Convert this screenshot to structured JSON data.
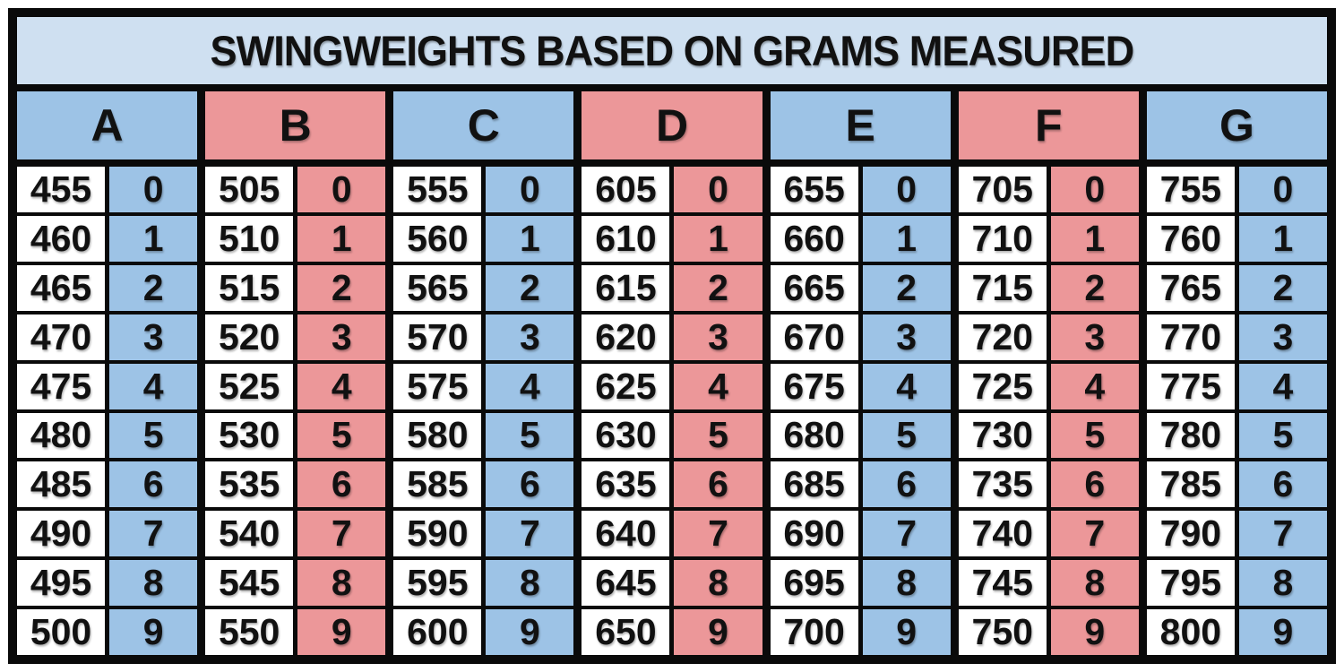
{
  "title": "SWINGWEIGHTS BASED ON GRAMS MEASURED",
  "colors": {
    "title_bg": "#cfe0f1",
    "blue": "#9dc3e6",
    "pink": "#ec9799",
    "border": "#0a0a0a",
    "cell_bg": "#ffffff",
    "text": "#111111"
  },
  "chart_data": {
    "type": "table",
    "title": "SWINGWEIGHTS BASED ON GRAMS MEASURED",
    "layout": {
      "rows_per_group": 10,
      "sub_columns": [
        "grams",
        "swingweight_digit"
      ],
      "grid": "7 column groups, each with a white grams cell and a colored digit cell",
      "theme_order": [
        "blue",
        "pink",
        "blue",
        "pink",
        "blue",
        "pink",
        "blue"
      ]
    },
    "columns": [
      {
        "label": "A",
        "theme": "blue",
        "grams": [
          455,
          460,
          465,
          470,
          475,
          480,
          485,
          490,
          495,
          500
        ],
        "swingweights": [
          0,
          1,
          2,
          3,
          4,
          5,
          6,
          7,
          8,
          9
        ]
      },
      {
        "label": "B",
        "theme": "pink",
        "grams": [
          505,
          510,
          515,
          520,
          525,
          530,
          535,
          540,
          545,
          550
        ],
        "swingweights": [
          0,
          1,
          2,
          3,
          4,
          5,
          6,
          7,
          8,
          9
        ]
      },
      {
        "label": "C",
        "theme": "blue",
        "grams": [
          555,
          560,
          565,
          570,
          575,
          580,
          585,
          590,
          595,
          600
        ],
        "swingweights": [
          0,
          1,
          2,
          3,
          4,
          5,
          6,
          7,
          8,
          9
        ]
      },
      {
        "label": "D",
        "theme": "pink",
        "grams": [
          605,
          610,
          615,
          620,
          625,
          630,
          635,
          640,
          645,
          650
        ],
        "swingweights": [
          0,
          1,
          2,
          3,
          4,
          5,
          6,
          7,
          8,
          9
        ]
      },
      {
        "label": "E",
        "theme": "blue",
        "grams": [
          655,
          660,
          665,
          670,
          675,
          680,
          685,
          690,
          695,
          700
        ],
        "swingweights": [
          0,
          1,
          2,
          3,
          4,
          5,
          6,
          7,
          8,
          9
        ]
      },
      {
        "label": "F",
        "theme": "pink",
        "grams": [
          705,
          710,
          715,
          720,
          725,
          730,
          735,
          740,
          745,
          750
        ],
        "swingweights": [
          0,
          1,
          2,
          3,
          4,
          5,
          6,
          7,
          8,
          9
        ]
      },
      {
        "label": "G",
        "theme": "blue",
        "grams": [
          755,
          760,
          765,
          770,
          775,
          780,
          785,
          790,
          795,
          800
        ],
        "swingweights": [
          0,
          1,
          2,
          3,
          4,
          5,
          6,
          7,
          8,
          9
        ]
      }
    ]
  }
}
